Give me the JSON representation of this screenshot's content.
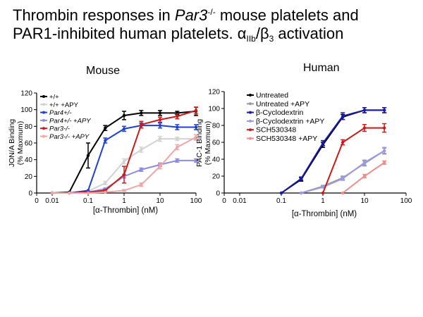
{
  "title": {
    "part1": "Thrombin responses in ",
    "gene": "Par3",
    "sup": "-/-",
    "part2": " mouse platelets and",
    "line2a": "PAR1-inhibited human platelets. α",
    "sub": "IIb",
    "line2b": "/β",
    "sub2": "3",
    "line2c": " activation"
  },
  "chart_data": [
    {
      "type": "line",
      "title": "Mouse",
      "xlabel": "[α-Thrombin] (nM)",
      "ylabel": "JON/A Binding (% Maxmum)",
      "ylabel_line1": "JON/A Binding",
      "ylabel_line2": "(% Maxmum)",
      "xscale": "log",
      "xlim": [
        0.01,
        100
      ],
      "ylim": [
        0,
        120
      ],
      "x_ticks": [
        "0",
        "0.01",
        "0.1",
        "1",
        "10",
        "100"
      ],
      "y_ticks": [
        0,
        20,
        40,
        60,
        80,
        100,
        120
      ],
      "legend_position": "top-left",
      "series": [
        {
          "name": "+/+",
          "color": "#000000",
          "x": [
            0.01,
            0.03,
            0.1,
            0.3,
            1,
            3,
            10,
            30,
            100
          ],
          "y": [
            0,
            1,
            45,
            78,
            93,
            96,
            96,
            96,
            98
          ],
          "err": [
            0,
            0,
            15,
            3,
            5,
            3,
            3,
            2,
            5
          ]
        },
        {
          "name": "+/+ +APY",
          "color": "#d2d2d2",
          "x": [
            0.01,
            0.03,
            0.1,
            0.3,
            1,
            3,
            10,
            30,
            100
          ],
          "y": [
            0,
            0,
            2,
            12,
            38,
            52,
            65,
            65,
            65
          ],
          "err": [
            0,
            0,
            0,
            2,
            3,
            3,
            3,
            2,
            2
          ]
        },
        {
          "name": "Par4+/-",
          "color": "#1f3fd6",
          "x": [
            0.01,
            0.03,
            0.1,
            0.3,
            1,
            3,
            10,
            30,
            100
          ],
          "y": [
            0,
            0,
            3,
            63,
            77,
            81,
            81,
            79,
            79
          ],
          "err": [
            0,
            0,
            0,
            3,
            3,
            3,
            3,
            3,
            3
          ]
        },
        {
          "name": "Par4+/- +APY",
          "color": "#8c8ce0",
          "x": [
            0.01,
            0.03,
            0.1,
            0.3,
            1,
            3,
            10,
            30,
            100
          ],
          "y": [
            0,
            0,
            1,
            5,
            20,
            28,
            34,
            39,
            39
          ],
          "err": [
            0,
            0,
            0,
            1,
            2,
            2,
            2,
            2,
            2
          ]
        },
        {
          "name": "Par3-/-",
          "color": "#cc1a1a",
          "x": [
            0.01,
            0.03,
            0.1,
            0.3,
            1,
            3,
            10,
            30,
            100
          ],
          "y": [
            0,
            0,
            1,
            3,
            22,
            82,
            88,
            92,
            99
          ],
          "err": [
            0,
            0,
            0,
            1,
            10,
            4,
            3,
            3,
            4
          ]
        },
        {
          "name": "Par3-/- +APY",
          "color": "#f0a6a6",
          "x": [
            0.01,
            0.03,
            0.1,
            0.3,
            1,
            3,
            10,
            30,
            100
          ],
          "y": [
            0,
            0,
            0,
            1,
            3,
            10,
            32,
            55,
            67
          ],
          "err": [
            0,
            0,
            0,
            0,
            1,
            2,
            3,
            3,
            3
          ]
        }
      ]
    },
    {
      "type": "line",
      "title": "Human",
      "xlabel": "[α-Thrombin] (nM)",
      "ylabel": "PAC-1 Binding (% Maxmum)",
      "ylabel_line1": "PAC-1 Binding",
      "ylabel_line2": "(% Maxmum)",
      "xscale": "log",
      "xlim": [
        0.01,
        100
      ],
      "ylim": [
        0,
        120
      ],
      "x_ticks": [
        "0",
        "0.01",
        "0.1",
        "1",
        "10",
        "100"
      ],
      "y_ticks": [
        0,
        20,
        40,
        60,
        80,
        100,
        120
      ],
      "legend_position": "top-left",
      "series": [
        {
          "name": "Untreated",
          "color": "#000000",
          "x": [
            0.1,
            0.3,
            1,
            3,
            10,
            30
          ],
          "y": [
            0,
            16,
            57,
            90,
            98,
            98
          ],
          "err": [
            0,
            2,
            3,
            3,
            3,
            3
          ]
        },
        {
          "name": "Untreated +APY",
          "color": "#9a9a9a",
          "x": [
            0.3,
            1,
            3,
            10,
            30
          ],
          "y": [
            0,
            8,
            18,
            35,
            50
          ],
          "err": [
            0,
            1,
            2,
            3,
            3
          ]
        },
        {
          "name": "β-Cyclodextrin",
          "color": "#1a1aa8",
          "x": [
            0.1,
            0.3,
            1,
            3,
            10,
            30
          ],
          "y": [
            0,
            17,
            59,
            91,
            98,
            98
          ],
          "err": [
            0,
            2,
            3,
            4,
            3,
            3
          ]
        },
        {
          "name": "β-Cyclodextrin +APY",
          "color": "#9a9ae6",
          "x": [
            0.3,
            1,
            3,
            10,
            30
          ],
          "y": [
            0,
            7,
            17,
            36,
            50
          ],
          "err": [
            0,
            1,
            2,
            3,
            4
          ]
        },
        {
          "name": "SCH530348",
          "color": "#cc1a1a",
          "x": [
            1,
            3,
            10,
            30
          ],
          "y": [
            0,
            60,
            77,
            77
          ],
          "err": [
            0,
            3,
            4,
            5
          ]
        },
        {
          "name": "SCH530348 +APY",
          "color": "#f08c8c",
          "x": [
            3,
            10,
            30
          ],
          "y": [
            0,
            20,
            36
          ],
          "err": [
            0,
            2,
            2
          ]
        }
      ]
    }
  ]
}
